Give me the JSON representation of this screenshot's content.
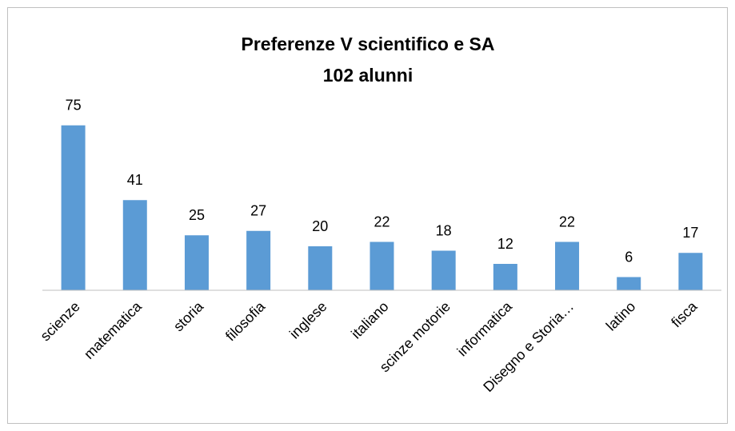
{
  "chart_data": {
    "type": "bar",
    "title": "Preferenze V scientifico e SA",
    "subtitle": "102 alunni",
    "categories": [
      "scienze",
      "matematica",
      "storia",
      "filosofia",
      "inglese",
      "italiano",
      "scinze motorie",
      "informatica",
      "Disegno e Storia…",
      "latino",
      "fisca"
    ],
    "values": [
      75,
      41,
      25,
      27,
      20,
      22,
      18,
      12,
      22,
      6,
      17
    ],
    "color": "#5b9bd5",
    "ylim": [
      0,
      80
    ],
    "data_labels": true
  }
}
